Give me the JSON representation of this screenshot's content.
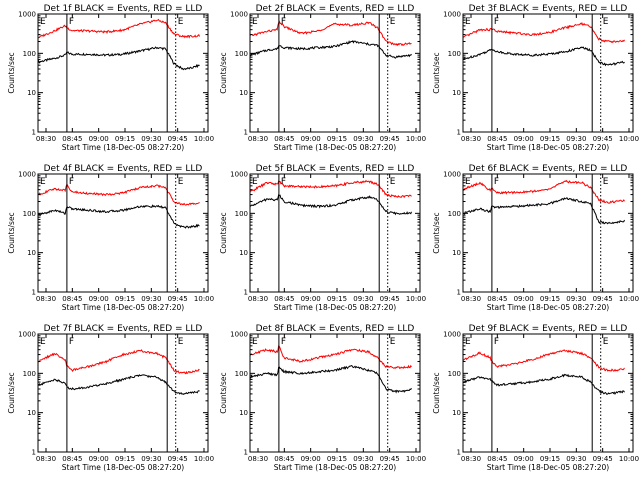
{
  "chart_data": {
    "type": "line",
    "common": {
      "xlabel": "Start Time (18-Dec-05 08:27:20)",
      "ylabel": "Counts/sec",
      "x_tick_labels": [
        "08:30",
        "08:45",
        "09:00",
        "09:15",
        "09:30",
        "09:45",
        "10:00"
      ],
      "x_range_min": [
        0,
        100
      ],
      "y_scale": "log",
      "y_range": [
        1,
        1000
      ],
      "y_tick_labels": [
        "1",
        "10",
        "100",
        "1000"
      ],
      "grid": false,
      "colors": {
        "events": "#000000",
        "lld": "#ff0000"
      }
    },
    "panels": [
      {
        "title": "Det 1f BLACK = Events, RED = LLD",
        "markers": [
          {
            "label": "E",
            "x": 0,
            "style": "solid"
          },
          {
            "label": "F",
            "x": 17,
            "style": "solid"
          },
          {
            "label": "",
            "x": 76,
            "style": "solid"
          },
          {
            "label": "E",
            "x": 81,
            "style": "dotted"
          }
        ],
        "series": [
          {
            "name": "Events",
            "x": [
              0,
              10,
              16,
              17,
              20,
              30,
              40,
              50,
              60,
              70,
              75,
              80,
              85,
              90,
              95
            ],
            "y": [
              60,
              75,
              90,
              105,
              95,
              95,
              90,
              95,
              115,
              140,
              130,
              55,
              40,
              42,
              50
            ]
          },
          {
            "name": "LLD",
            "x": [
              0,
              10,
              16,
              17,
              20,
              30,
              40,
              50,
              60,
              70,
              75,
              80,
              85,
              90,
              95
            ],
            "y": [
              250,
              380,
              500,
              450,
              380,
              370,
              350,
              390,
              550,
              700,
              600,
              310,
              270,
              270,
              280
            ]
          }
        ]
      },
      {
        "title": "Det 2f BLACK = Events, RED = LLD",
        "markers": [
          {
            "label": "E",
            "x": 0,
            "style": "solid"
          },
          {
            "label": "F",
            "x": 17,
            "style": "solid"
          },
          {
            "label": "",
            "x": 76,
            "style": "solid"
          },
          {
            "label": "E",
            "x": 81,
            "style": "dotted"
          }
        ],
        "series": [
          {
            "name": "Events",
            "x": [
              0,
              10,
              16,
              17,
              20,
              30,
              40,
              50,
              60,
              70,
              75,
              80,
              85,
              90,
              95
            ],
            "y": [
              90,
              120,
              130,
              160,
              140,
              130,
              140,
              150,
              200,
              170,
              160,
              90,
              80,
              85,
              90
            ]
          },
          {
            "name": "LLD",
            "x": [
              0,
              10,
              16,
              17,
              20,
              30,
              40,
              50,
              60,
              70,
              75,
              80,
              85,
              90,
              95
            ],
            "y": [
              280,
              360,
              400,
              650,
              480,
              320,
              370,
              560,
              520,
              600,
              450,
              200,
              170,
              170,
              180
            ]
          }
        ]
      },
      {
        "title": "Det 3f BLACK = Events, RED = LLD",
        "markers": [
          {
            "label": "E",
            "x": 0,
            "style": "solid"
          },
          {
            "label": "F",
            "x": 17,
            "style": "solid"
          },
          {
            "label": "",
            "x": 76,
            "style": "solid"
          },
          {
            "label": "E",
            "x": 81,
            "style": "dotted"
          }
        ],
        "series": [
          {
            "name": "Events",
            "x": [
              0,
              10,
              16,
              17,
              20,
              30,
              40,
              50,
              60,
              70,
              75,
              80,
              85,
              90,
              95
            ],
            "y": [
              70,
              95,
              120,
              130,
              110,
              95,
              90,
              95,
              110,
              140,
              120,
              60,
              50,
              55,
              60
            ]
          },
          {
            "name": "LLD",
            "x": [
              0,
              10,
              16,
              17,
              20,
              30,
              40,
              50,
              60,
              70,
              75,
              80,
              85,
              90,
              95
            ],
            "y": [
              250,
              400,
              400,
              420,
              360,
              330,
              300,
              330,
              450,
              560,
              480,
              230,
              200,
              200,
              210
            ]
          }
        ]
      },
      {
        "title": "Det 4f BLACK = Events, RED = LLD",
        "markers": [
          {
            "label": "E",
            "x": 0,
            "style": "solid"
          },
          {
            "label": "F",
            "x": 17,
            "style": "solid"
          },
          {
            "label": "",
            "x": 76,
            "style": "solid"
          },
          {
            "label": "E",
            "x": 81,
            "style": "dotted"
          }
        ],
        "series": [
          {
            "name": "Events",
            "x": [
              0,
              10,
              16,
              17,
              20,
              30,
              40,
              50,
              60,
              70,
              75,
              80,
              85,
              90,
              95
            ],
            "y": [
              90,
              120,
              100,
              150,
              130,
              120,
              110,
              120,
              150,
              150,
              140,
              55,
              45,
              45,
              50
            ]
          },
          {
            "name": "LLD",
            "x": [
              0,
              10,
              16,
              17,
              20,
              30,
              40,
              50,
              60,
              70,
              75,
              80,
              85,
              90,
              95
            ],
            "y": [
              300,
              420,
              380,
              550,
              350,
              320,
              300,
              330,
              450,
              500,
              450,
              200,
              170,
              170,
              180
            ]
          }
        ]
      },
      {
        "title": "Det 5f BLACK = Events, RED = LLD",
        "markers": [
          {
            "label": "E",
            "x": 0,
            "style": "solid"
          },
          {
            "label": "F",
            "x": 17,
            "style": "solid"
          },
          {
            "label": "",
            "x": 76,
            "style": "solid"
          },
          {
            "label": "E",
            "x": 81,
            "style": "dotted"
          }
        ],
        "series": [
          {
            "name": "Events",
            "x": [
              0,
              10,
              16,
              17,
              20,
              30,
              40,
              50,
              60,
              70,
              75,
              80,
              85,
              90,
              95
            ],
            "y": [
              150,
              230,
              220,
              300,
              200,
              160,
              150,
              160,
              220,
              260,
              220,
              110,
              100,
              100,
              105
            ]
          },
          {
            "name": "LLD",
            "x": [
              0,
              10,
              16,
              17,
              20,
              30,
              40,
              50,
              60,
              70,
              75,
              80,
              85,
              90,
              95
            ],
            "y": [
              350,
              600,
              550,
              650,
              500,
              480,
              470,
              500,
              600,
              650,
              550,
              300,
              270,
              270,
              280
            ]
          }
        ]
      },
      {
        "title": "Det 6f BLACK = Events, RED = LLD",
        "markers": [
          {
            "label": "E",
            "x": 0,
            "style": "solid"
          },
          {
            "label": "F",
            "x": 17,
            "style": "solid"
          },
          {
            "label": "",
            "x": 76,
            "style": "solid"
          },
          {
            "label": "E",
            "x": 81,
            "style": "dotted"
          }
        ],
        "series": [
          {
            "name": "Events",
            "x": [
              0,
              10,
              16,
              17,
              20,
              30,
              40,
              50,
              60,
              70,
              75,
              80,
              85,
              90,
              95
            ],
            "y": [
              100,
              130,
              110,
              150,
              140,
              150,
              160,
              170,
              240,
              200,
              180,
              60,
              55,
              60,
              65
            ]
          },
          {
            "name": "LLD",
            "x": [
              0,
              10,
              16,
              17,
              20,
              30,
              40,
              50,
              60,
              70,
              75,
              80,
              85,
              90,
              95
            ],
            "y": [
              400,
              600,
              380,
              420,
              330,
              340,
              360,
              400,
              650,
              600,
              450,
              220,
              190,
              200,
              210
            ]
          }
        ]
      },
      {
        "title": "Det 7f BLACK = Events, RED = LLD",
        "markers": [
          {
            "label": "E",
            "x": 0,
            "style": "solid"
          },
          {
            "label": "F",
            "x": 17,
            "style": "solid"
          },
          {
            "label": "",
            "x": 76,
            "style": "solid"
          },
          {
            "label": "E",
            "x": 81,
            "style": "dotted"
          }
        ],
        "series": [
          {
            "name": "Events",
            "x": [
              0,
              10,
              16,
              17,
              20,
              30,
              40,
              50,
              60,
              70,
              75,
              80,
              85,
              90,
              95
            ],
            "y": [
              50,
              70,
              55,
              45,
              40,
              45,
              55,
              70,
              90,
              80,
              60,
              35,
              30,
              32,
              35
            ]
          },
          {
            "name": "LLD",
            "x": [
              0,
              10,
              16,
              17,
              20,
              30,
              40,
              50,
              60,
              70,
              75,
              80,
              85,
              90,
              95
            ],
            "y": [
              200,
              320,
              220,
              150,
              120,
              150,
              200,
              300,
              380,
              320,
              250,
              120,
              100,
              110,
              120
            ]
          }
        ]
      },
      {
        "title": "Det 8f BLACK = Events, RED = LLD",
        "markers": [
          {
            "label": "E",
            "x": 0,
            "style": "solid"
          },
          {
            "label": "F",
            "x": 17,
            "style": "solid"
          },
          {
            "label": "",
            "x": 76,
            "style": "solid"
          },
          {
            "label": "E",
            "x": 81,
            "style": "dotted"
          }
        ],
        "series": [
          {
            "name": "Events",
            "x": [
              0,
              10,
              16,
              17,
              20,
              30,
              40,
              50,
              60,
              70,
              75,
              80,
              85,
              90,
              95
            ],
            "y": [
              80,
              100,
              90,
              150,
              110,
              100,
              110,
              120,
              150,
              120,
              100,
              40,
              35,
              35,
              40
            ]
          },
          {
            "name": "LLD",
            "x": [
              0,
              10,
              16,
              17,
              20,
              30,
              40,
              50,
              60,
              70,
              75,
              80,
              85,
              90,
              95
            ],
            "y": [
              300,
              400,
              350,
              500,
              250,
              200,
              250,
              300,
              400,
              350,
              250,
              150,
              140,
              140,
              150
            ]
          }
        ]
      },
      {
        "title": "Det 9f BLACK = Events, RED = LLD",
        "markers": [
          {
            "label": "E",
            "x": 0,
            "style": "solid"
          },
          {
            "label": "F",
            "x": 17,
            "style": "solid"
          },
          {
            "label": "",
            "x": 76,
            "style": "solid"
          },
          {
            "label": "E",
            "x": 81,
            "style": "dotted"
          }
        ],
        "series": [
          {
            "name": "Events",
            "x": [
              0,
              10,
              16,
              17,
              20,
              30,
              40,
              50,
              60,
              70,
              75,
              80,
              85,
              90,
              95
            ],
            "y": [
              60,
              80,
              70,
              65,
              50,
              55,
              60,
              70,
              90,
              80,
              60,
              35,
              30,
              32,
              35
            ]
          },
          {
            "name": "LLD",
            "x": [
              0,
              10,
              16,
              17,
              20,
              30,
              40,
              50,
              60,
              70,
              75,
              80,
              85,
              90,
              95
            ],
            "y": [
              220,
              330,
              250,
              200,
              150,
              170,
              220,
              300,
              380,
              320,
              250,
              140,
              120,
              120,
              130
            ]
          }
        ]
      }
    ]
  }
}
